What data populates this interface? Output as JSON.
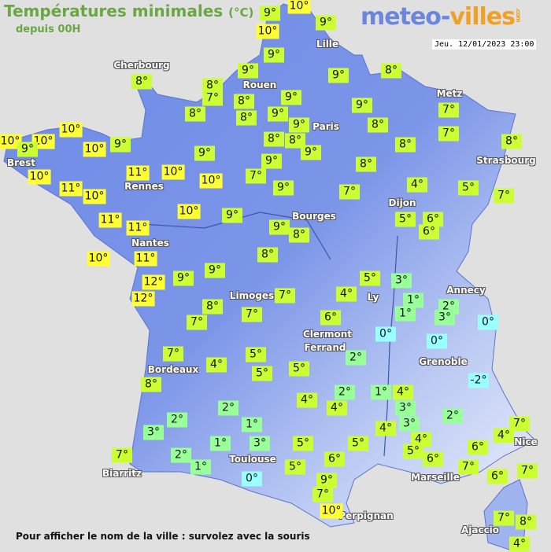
{
  "header": {
    "title": "Températures minimales",
    "unit": "(°C)",
    "subtitle": "depuis 00H"
  },
  "logo": {
    "part1": "meteo-",
    "part2": "villes",
    "tld": ".com"
  },
  "datetime": "Jeu. 12/01/2023 23:00",
  "footer": "Pour afficher le nom de la ville : survolez avec la souris",
  "colors": {
    "warm": "#ffff33",
    "mild": "#ccff33",
    "cool": "#99ff99",
    "cold": "#99ffff",
    "land_dark": "#6e8ae6",
    "land_light": "#e6ecfb",
    "sea": "#e1e0e0"
  },
  "cities": [
    "Cherbourg",
    "Rouen",
    "Lille",
    "Paris",
    "Metz",
    "Strasbourg",
    "Brest",
    "Rennes",
    "Dijon",
    "Nantes",
    "Bourges",
    "Limoges",
    "Ly",
    "Annecy",
    "Clermont",
    "Ferrand",
    "Grenoble",
    "Bordeaux",
    "Toulouse",
    "Biarritz",
    "Marseille",
    "Nice",
    "Perpignan",
    "Ajaccio"
  ],
  "temps": [
    "9°",
    "10°",
    "10°",
    "9°",
    "9°",
    "9°",
    "8°",
    "9°",
    "8°",
    "8°",
    "7°",
    "8°",
    "9°",
    "8°",
    "8°",
    "9°",
    "9°",
    "7°",
    "9°",
    "8°",
    "7°",
    "10°",
    "10°",
    "10°",
    "9°",
    "10°",
    "9°",
    "8°",
    "8°",
    "8°",
    "8°",
    "9°",
    "9°",
    "9°",
    "8°",
    "10°",
    "11°",
    "10°",
    "10°",
    "7°",
    "11°",
    "10°",
    "9°",
    "7°",
    "4°",
    "5°",
    "7°",
    "10°",
    "9°",
    "11°",
    "11°",
    "9°",
    "8°",
    "5°",
    "6°",
    "6°",
    "10°",
    "11°",
    "8°",
    "9°",
    "12°",
    "9°",
    "12°",
    "5°",
    "3°",
    "8°",
    "7°",
    "4°",
    "1°",
    "2°",
    "7°",
    "7°",
    "6°",
    "1°",
    "3°",
    "0°",
    "0°",
    "0°",
    "7°",
    "5°",
    "2°",
    "4°",
    "5°",
    "5°",
    "-2°",
    "8°",
    "2°",
    "1°",
    "4°",
    "4°",
    "4°",
    "3°",
    "2°",
    "2°",
    "2°",
    "3°",
    "1°",
    "3°",
    "4°",
    "7°",
    "4°",
    "1°",
    "3°",
    "5°",
    "5°",
    "4°",
    "6°",
    "7°",
    "2°",
    "5°",
    "6°",
    "6°",
    "1°",
    "5°",
    "7°",
    "7°",
    "0°",
    "9°",
    "6°",
    "7°",
    "10°",
    "7°",
    "8°",
    "4°"
  ]
}
